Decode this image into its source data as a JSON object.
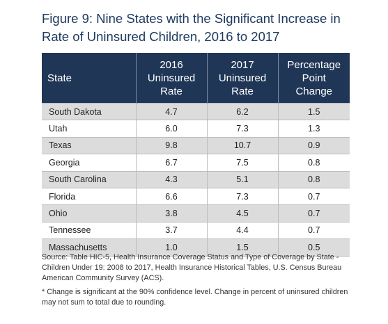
{
  "figure": {
    "title": "Figure 9: Nine States with the Significant Increase in Rate of Uninsured Children, 2016 to 2017"
  },
  "table": {
    "headers": [
      [
        "State"
      ],
      [
        "2016",
        "Uninsured",
        "Rate"
      ],
      [
        "2017",
        "Uninsured",
        "Rate"
      ],
      [
        "Percentage",
        "Point",
        "Change"
      ]
    ],
    "rows": [
      [
        "South Dakota",
        "4.7",
        "6.2",
        "1.5"
      ],
      [
        "Utah",
        "6.0",
        "7.3",
        "1.3"
      ],
      [
        "Texas",
        "9.8",
        "10.7",
        "0.9"
      ],
      [
        "Georgia",
        "6.7",
        "7.5",
        "0.8"
      ],
      [
        "South Carolina",
        "4.3",
        "5.1",
        "0.8"
      ],
      [
        "Florida",
        "6.6",
        "7.3",
        "0.7"
      ],
      [
        "Ohio",
        "3.8",
        "4.5",
        "0.7"
      ],
      [
        "Tennessee",
        "3.7",
        "4.4",
        "0.7"
      ],
      [
        "Massachusetts",
        "1.0",
        "1.5",
        "0.5"
      ]
    ]
  },
  "source": "Source: Table HIC-5, Health Insurance Coverage Status and Type of Coverage by State - Children Under 19: 2008 to 2017, Health Insurance Historical Tables, U.S. Census Bureau American Community Survey (ACS).",
  "footnote": "* Change is significant at the 90% confidence level. Change in percent of uninsured children may not sum to total due to rounding.",
  "colors": {
    "title": "#1f3a60",
    "header_background": "#1f3656",
    "shaded_row": "#dcdcdc"
  }
}
